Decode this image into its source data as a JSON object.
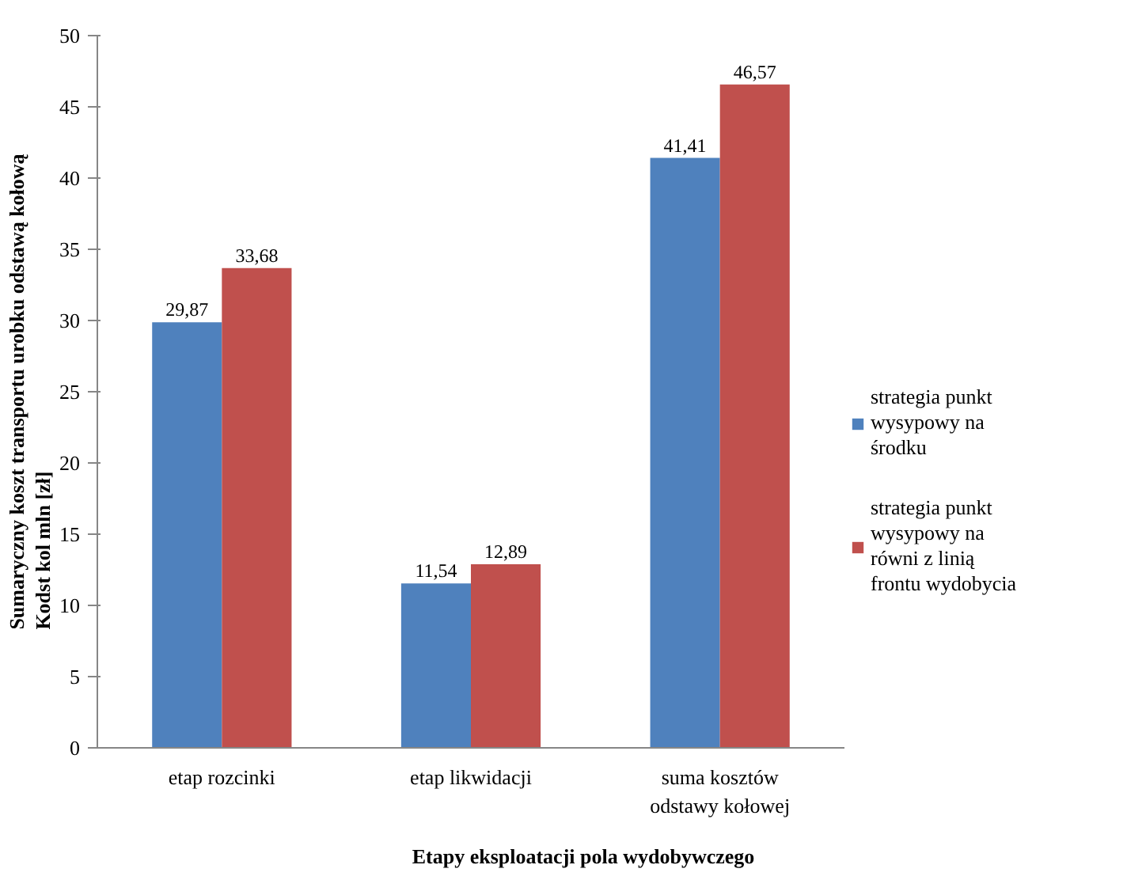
{
  "chart_data": {
    "type": "bar",
    "xlabel": "Etapy eksploatacji pola wydobywczego",
    "ylabel": "Sumaryczny koszt transportu urobku odstawą kołową\nKodst kol mln  [zł]",
    "categories": [
      "etap rozcinki",
      "etap likwidacji",
      "suma kosztów\nodstawy kołowej"
    ],
    "series": [
      {
        "name": "strategia punkt wysypowy na środku",
        "color": "#4f81bd",
        "values": [
          29.87,
          11.54,
          41.41
        ],
        "value_labels": [
          "29,87",
          "11,54",
          "41,41"
        ]
      },
      {
        "name": "strategia punkt wysypowy na równi z linią frontu wydobycia",
        "color": "#c0504d",
        "values": [
          33.68,
          12.89,
          46.57
        ],
        "value_labels": [
          "33,68",
          "12,89",
          "46,57"
        ]
      }
    ],
    "ylim": [
      0,
      50
    ],
    "yticks": [
      0,
      5,
      10,
      15,
      20,
      25,
      30,
      35,
      40,
      45,
      50
    ],
    "grid": false,
    "legend": "right"
  }
}
